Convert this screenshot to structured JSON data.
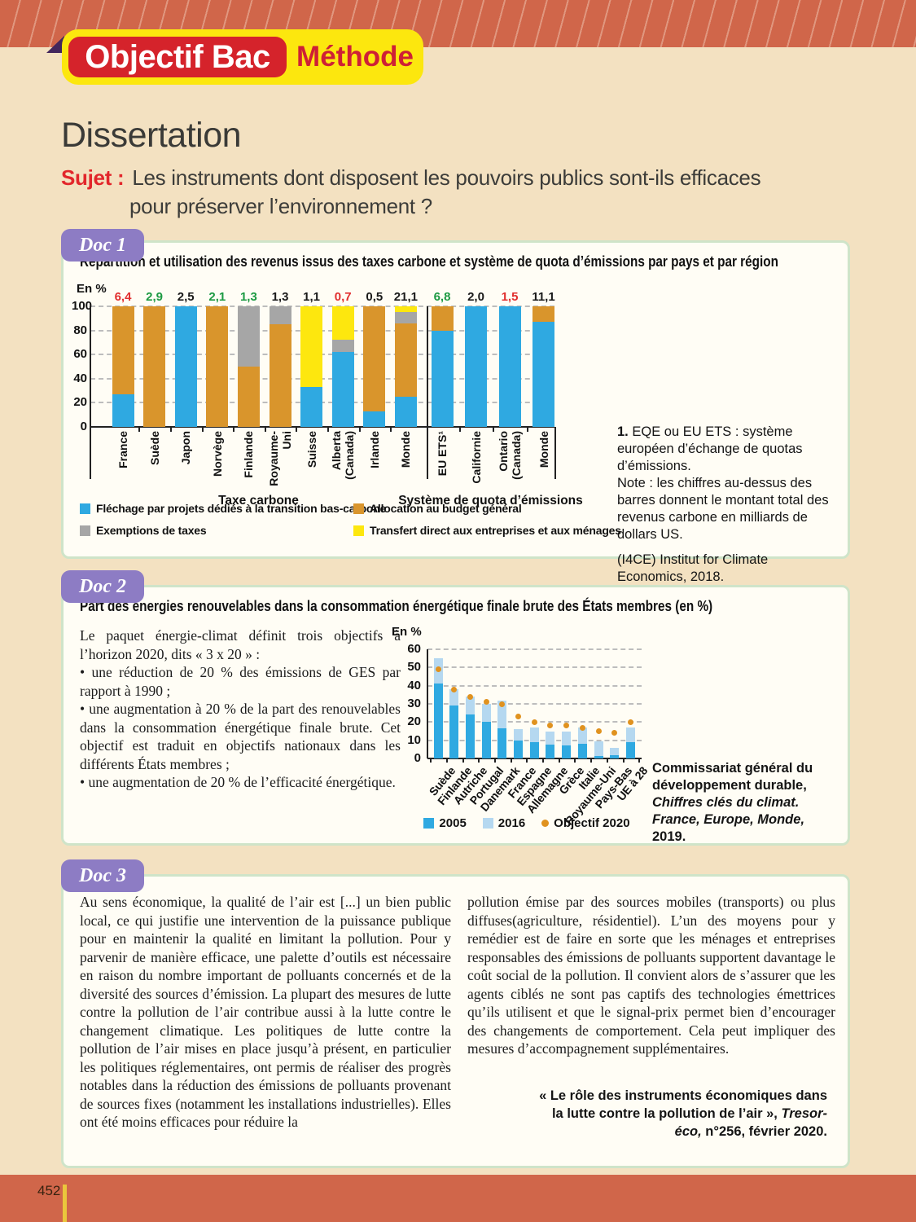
{
  "page": {
    "number": "452"
  },
  "header": {
    "badge_primary": "Objectif Bac",
    "badge_secondary": "Méthode",
    "title": "Dissertation",
    "subject_label": "Sujet :",
    "subject_line1": "Les instruments dont disposent les pouvoirs publics sont-ils efficaces",
    "subject_line2": "pour préserver l’environnement ?"
  },
  "doc1": {
    "badge": "Doc 1",
    "title": "Répartition et utilisation des revenus issus des taxes carbone et système de quota d’émissions par pays et par région",
    "axis_unit": "En %",
    "note_number": "1.",
    "note_text": " EQE ou EU ETS : système européen d’échange de quotas d’émissions.",
    "note_text2": "Note : les chiffres au-dessus des barres donnent le montant total des revenus carbone en milliards de dollars US.",
    "source": "(I4CE) Institut for Climate Economics, 2018.",
    "chart_data": {
      "type": "bar",
      "stacked": true,
      "ylabel": "En %",
      "ylim": [
        0,
        100
      ],
      "yticks": [
        0,
        20,
        40,
        60,
        80,
        100
      ],
      "categories": [
        "France",
        "Suède",
        "Japon",
        "Norvège",
        "Finlande",
        "Royaume-\nUni",
        "Suisse",
        "Alberta\n(Canada)",
        "Irlande",
        "Monde",
        "EU ETS¹",
        "Californie",
        "Ontario\n(Canada)",
        "Monde"
      ],
      "groups": [
        {
          "label": "Taxe carbone",
          "from": 0,
          "to": 9
        },
        {
          "label": "Système de quota d’émissions",
          "from": 10,
          "to": 13
        }
      ],
      "top_values": [
        {
          "text": "6,4",
          "color": "red"
        },
        {
          "text": "2,9",
          "color": "green"
        },
        {
          "text": "2,5",
          "color": "black"
        },
        {
          "text": "2,1",
          "color": "green"
        },
        {
          "text": "1,3",
          "color": "green"
        },
        {
          "text": "1,3",
          "color": "black"
        },
        {
          "text": "1,1",
          "color": "black"
        },
        {
          "text": "0,7",
          "color": "red"
        },
        {
          "text": "0,5",
          "color": "black"
        },
        {
          "text": "21,1",
          "color": "black"
        },
        {
          "text": "6,8",
          "color": "green"
        },
        {
          "text": "2,0",
          "color": "black"
        },
        {
          "text": "1,5",
          "color": "red"
        },
        {
          "text": "11,1",
          "color": "black"
        }
      ],
      "value_colors": {
        "red": "#e12f2f",
        "green": "#1d9a43",
        "black": "#1a1a1a"
      },
      "segment_colors": {
        "blue": "#2fa9e1",
        "orange": "#d9952c",
        "gray": "#a6a6a6",
        "yellow": "#fde70e"
      },
      "bars": [
        [
          [
            "blue",
            27
          ],
          [
            "orange",
            73
          ]
        ],
        [
          [
            "orange",
            100
          ]
        ],
        [
          [
            "blue",
            100
          ]
        ],
        [
          [
            "orange",
            100
          ]
        ],
        [
          [
            "orange",
            50
          ],
          [
            "gray",
            50
          ]
        ],
        [
          [
            "orange",
            85
          ],
          [
            "gray",
            15
          ]
        ],
        [
          [
            "blue",
            33
          ],
          [
            "yellow",
            67
          ]
        ],
        [
          [
            "blue",
            62
          ],
          [
            "gray",
            10
          ],
          [
            "yellow",
            28
          ]
        ],
        [
          [
            "blue",
            13
          ],
          [
            "orange",
            87
          ]
        ],
        [
          [
            "blue",
            25
          ],
          [
            "orange",
            61
          ],
          [
            "gray",
            9
          ],
          [
            "yellow",
            5
          ]
        ],
        [
          [
            "blue",
            80
          ],
          [
            "orange",
            20
          ]
        ],
        [
          [
            "blue",
            100
          ]
        ],
        [
          [
            "blue",
            100
          ]
        ],
        [
          [
            "blue",
            87
          ],
          [
            "orange",
            13
          ]
        ]
      ],
      "legend": [
        {
          "color": "blue",
          "label": "Fléchage par projets dédiés à la transition bas-carbone"
        },
        {
          "color": "orange",
          "label": "Allocation au budget général"
        },
        {
          "color": "gray",
          "label": "Exemptions de taxes"
        },
        {
          "color": "yellow",
          "label": "Transfert direct aux entreprises et aux ménages"
        }
      ]
    }
  },
  "doc2": {
    "badge": "Doc 2",
    "title": "Part des énergies renouvelables dans la consommation énergétique finale brute des États membres (en %)",
    "axis_unit": "En %",
    "text_intro": "Le paquet énergie-climat définit trois objectifs à l’horizon 2020, dits « 3 x 20 » :",
    "bullets": [
      "• une réduction de 20 % des émissions de GES par rapport à 1990 ;",
      "• une augmentation à 20 % de la part des renouvelables dans la consommation énergétique finale brute. Cet objectif est traduit en objectifs nationaux dans les différents États membres ;",
      "• une augmentation de 20 % de l’efficacité énergétique."
    ],
    "source_normal": "Commissariat général du développement durable, ",
    "source_italic": "Chiffres clés du climat. France, Europe, Monde,",
    "source_end": " 2019.",
    "chart_data": {
      "type": "bar",
      "ylabel": "En %",
      "ylim": [
        0,
        60
      ],
      "yticks": [
        0,
        10,
        20,
        30,
        40,
        50,
        60
      ],
      "categories": [
        "Suède",
        "Finlande",
        "Autriche",
        "Portugal",
        "Danemark",
        "France",
        "Espagne",
        "Allemagne",
        "Grèce",
        "Italie",
        "Royaume-Uni",
        "Pays-Bas",
        "UE à 28"
      ],
      "series": [
        {
          "name": "2005",
          "color": "#2fa9e1",
          "values": [
            41,
            29,
            24,
            20,
            16.5,
            10,
            9,
            7.5,
            7,
            8,
            1.5,
            2,
            9
          ]
        },
        {
          "name": "2016",
          "color": "#b5d8f0",
          "values": [
            55,
            38,
            34,
            30,
            32,
            16,
            17,
            15,
            15,
            17,
            9.5,
            6,
            17
          ]
        },
        {
          "name": "Objectif 2020",
          "color": "#e0921f",
          "style": "dot",
          "values": [
            49,
            38,
            34,
            31,
            30,
            23,
            20,
            18,
            18,
            17,
            15,
            14,
            20
          ]
        }
      ],
      "legend": [
        "2005",
        "2016",
        "Objectif 2020"
      ]
    }
  },
  "doc3": {
    "badge": "Doc 3",
    "col1": "Au sens économique, la qualité de l’air est [...] un bien public local, ce qui justifie une intervention de la puissance publique pour en maintenir la qualité en limitant la pollution. Pour y parvenir de manière efficace, une palette d’outils est nécessaire en raison du nombre important de polluants concernés et de la diversité des sources d’émission. La plupart des mesures de lutte contre la pollution de l’air contribue aussi à la lutte contre le changement climatique. Les politiques de lutte contre la pollution de l’air mises en place jusqu’à présent, en particulier les politiques réglementaires, ont permis de réaliser des progrès notables dans la réduction des émissions de polluants provenant de sources fixes (notamment les installations industrielles). Elles ont été moins efficaces pour réduire la",
    "col2": "pollution émise par des sources mobiles (transports) ou plus diffuses(agriculture, résidentiel). L’un des moyens pour y remédier est de faire en sorte que les ménages et entreprises responsables des émissions de polluants supportent davantage le coût social de la pollution. Il convient alors de s’assurer que les agents ciblés ne sont pas captifs des technologies émettrices qu’ils utilisent et que le signal-prix permet bien d’encourager des changements de comportement. Cela peut impliquer des mesures d’accompagnement supplémentaires.",
    "source_normal": "« Le rôle des instruments économiques dans la lutte contre la pollution de l’air », ",
    "source_italic": "Tresor-éco,",
    "source_end": " n°256, février 2020."
  }
}
